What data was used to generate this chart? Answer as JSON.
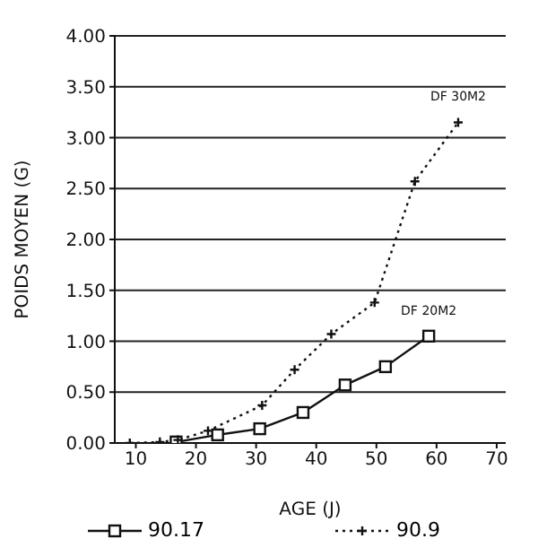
{
  "chart_data": {
    "type": "line",
    "xlabel": "AGE (J)",
    "ylabel": "POIDS MOYEN (G)",
    "xlim": [
      6.5,
      71.5
    ],
    "xticks": [
      10,
      20,
      30,
      40,
      50,
      60,
      70
    ],
    "ylim": [
      0,
      4
    ],
    "yticks": [
      {
        "value": 0,
        "label": "0.00"
      },
      {
        "value": 0.5,
        "label": "0.50"
      },
      {
        "value": 1,
        "label": "1.00"
      },
      {
        "value": 1.5,
        "label": "1.50"
      },
      {
        "value": 2,
        "label": "2.00"
      },
      {
        "value": 2.5,
        "label": "2.50"
      },
      {
        "value": 3,
        "label": "3.00"
      },
      {
        "value": 3.5,
        "label": "3.50"
      },
      {
        "value": 4,
        "label": "4.00"
      }
    ],
    "grid": "y",
    "legend": "bottom",
    "series": [
      {
        "name": "90.17",
        "color": "#111111",
        "marker": "square",
        "line_style": "solid",
        "x": [
          16.7,
          23.6,
          30.6,
          37.8,
          44.8,
          51.5,
          58.7
        ],
        "values": [
          0.01,
          0.08,
          0.14,
          0.3,
          0.57,
          0.75,
          1.05
        ]
      },
      {
        "name": "90.9",
        "color": "#111111",
        "marker": "cross",
        "line_style": "dotted",
        "x": [
          9,
          14,
          17,
          22,
          31,
          36.4,
          42.5,
          49.7,
          56.4,
          63.6
        ],
        "values": [
          0,
          0.01,
          0.03,
          0.12,
          0.37,
          0.72,
          1.07,
          1.38,
          2.57,
          3.15
        ]
      }
    ],
    "annotations": [
      {
        "text": "DF 30M2",
        "x": 63.6,
        "y": 3.15
      },
      {
        "text": "DF 20M2",
        "x": 58.7,
        "y": 1.05
      }
    ]
  }
}
